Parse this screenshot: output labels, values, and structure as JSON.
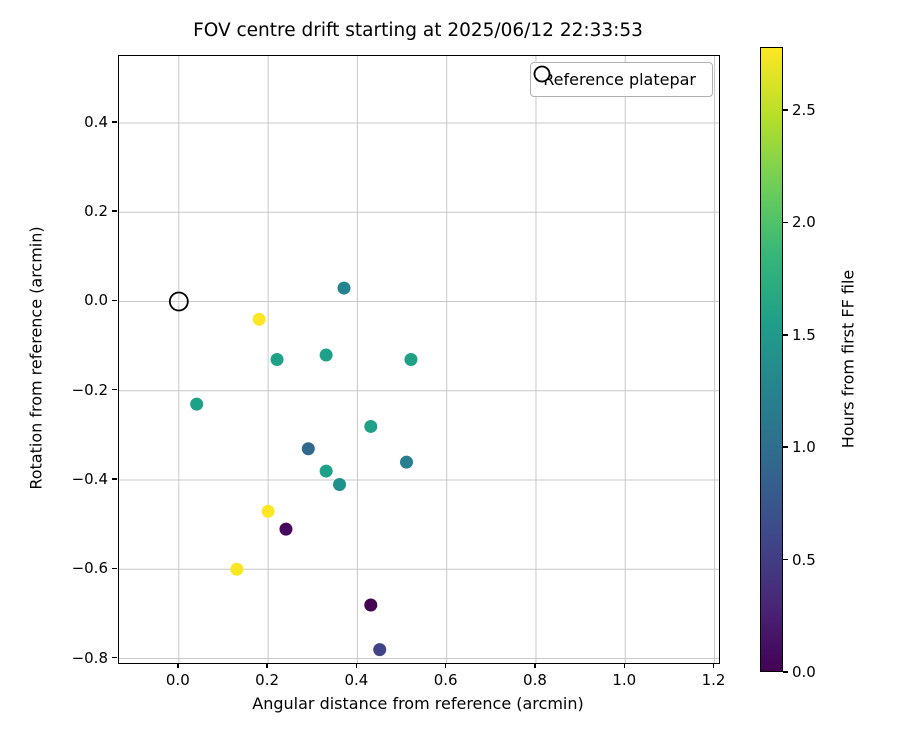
{
  "chart_data": {
    "type": "scatter",
    "title": "FOV centre drift starting at 2025/06/12 22:33:53",
    "xlabel": "Angular distance from reference (arcmin)",
    "ylabel": "Rotation from reference (arcmin)",
    "xlim": [
      -0.134,
      1.21
    ],
    "ylim": [
      -0.81,
      0.55
    ],
    "grid": true,
    "legend_label": "Reference platepar",
    "legend_position": "upper right",
    "xticks": [
      {
        "v": 0.0,
        "label": "0.0"
      },
      {
        "v": 0.2,
        "label": "0.2"
      },
      {
        "v": 0.4,
        "label": "0.4"
      },
      {
        "v": 0.6,
        "label": "0.6"
      },
      {
        "v": 0.8,
        "label": "0.8"
      },
      {
        "v": 1.0,
        "label": "1.0"
      },
      {
        "v": 1.2,
        "label": "1.2"
      }
    ],
    "yticks": [
      {
        "v": 0.4,
        "label": "0.4"
      },
      {
        "v": 0.2,
        "label": "0.2"
      },
      {
        "v": 0.0,
        "label": "0.0"
      },
      {
        "v": -0.2,
        "label": "−0.2"
      },
      {
        "v": -0.4,
        "label": "−0.4"
      },
      {
        "v": -0.6,
        "label": "−0.6"
      },
      {
        "v": -0.8,
        "label": "−0.8"
      }
    ],
    "reference_platepar": {
      "x": 0.0,
      "y": 0.0
    },
    "points": [
      {
        "x": 0.18,
        "y": -0.04,
        "hours": 2.7,
        "color": "#fde725"
      },
      {
        "x": 0.22,
        "y": -0.13,
        "hours": 1.65,
        "color": "#1fa187"
      },
      {
        "x": 0.04,
        "y": -0.23,
        "hours": 1.65,
        "color": "#1fa187"
      },
      {
        "x": 0.33,
        "y": -0.12,
        "hours": 1.55,
        "color": "#1fa088"
      },
      {
        "x": 0.37,
        "y": 0.03,
        "hours": 1.35,
        "color": "#25848e"
      },
      {
        "x": 0.52,
        "y": -0.13,
        "hours": 1.6,
        "color": "#1fa187"
      },
      {
        "x": 0.29,
        "y": -0.33,
        "hours": 0.9,
        "color": "#31688e"
      },
      {
        "x": 0.33,
        "y": -0.38,
        "hours": 1.55,
        "color": "#1fa088"
      },
      {
        "x": 0.36,
        "y": -0.41,
        "hours": 1.45,
        "color": "#21918c"
      },
      {
        "x": 0.43,
        "y": -0.28,
        "hours": 1.6,
        "color": "#1fa187"
      },
      {
        "x": 0.51,
        "y": -0.36,
        "hours": 1.3,
        "color": "#277f8e"
      },
      {
        "x": 0.2,
        "y": -0.47,
        "hours": 2.75,
        "color": "#fde725"
      },
      {
        "x": 0.24,
        "y": -0.51,
        "hours": 0.1,
        "color": "#46085c"
      },
      {
        "x": 0.13,
        "y": -0.6,
        "hours": 2.78,
        "color": "#f8e621"
      },
      {
        "x": 0.43,
        "y": -0.68,
        "hours": 0.05,
        "color": "#440154"
      },
      {
        "x": 0.45,
        "y": -0.78,
        "hours": 0.5,
        "color": "#414487"
      }
    ],
    "colorbar": {
      "label": "Hours from first FF file",
      "min": 0.0,
      "max": 2.78,
      "colormap": "viridis",
      "ticks": [
        {
          "v": 0.0,
          "label": "0.0"
        },
        {
          "v": 0.5,
          "label": "0.5"
        },
        {
          "v": 1.0,
          "label": "1.0"
        },
        {
          "v": 1.5,
          "label": "1.5"
        },
        {
          "v": 2.0,
          "label": "2.0"
        },
        {
          "v": 2.5,
          "label": "2.5"
        }
      ],
      "gradient": [
        "#440154",
        "#482878",
        "#3e4a89",
        "#31688e",
        "#26828e",
        "#1f9e89",
        "#35b779",
        "#6ece58",
        "#b5de2b",
        "#fde725"
      ]
    },
    "style": {
      "grid_color": "#c8c8c8",
      "spine_color": "#000000",
      "marker_radius": 6.5,
      "reference_marker_radius": 9
    }
  }
}
